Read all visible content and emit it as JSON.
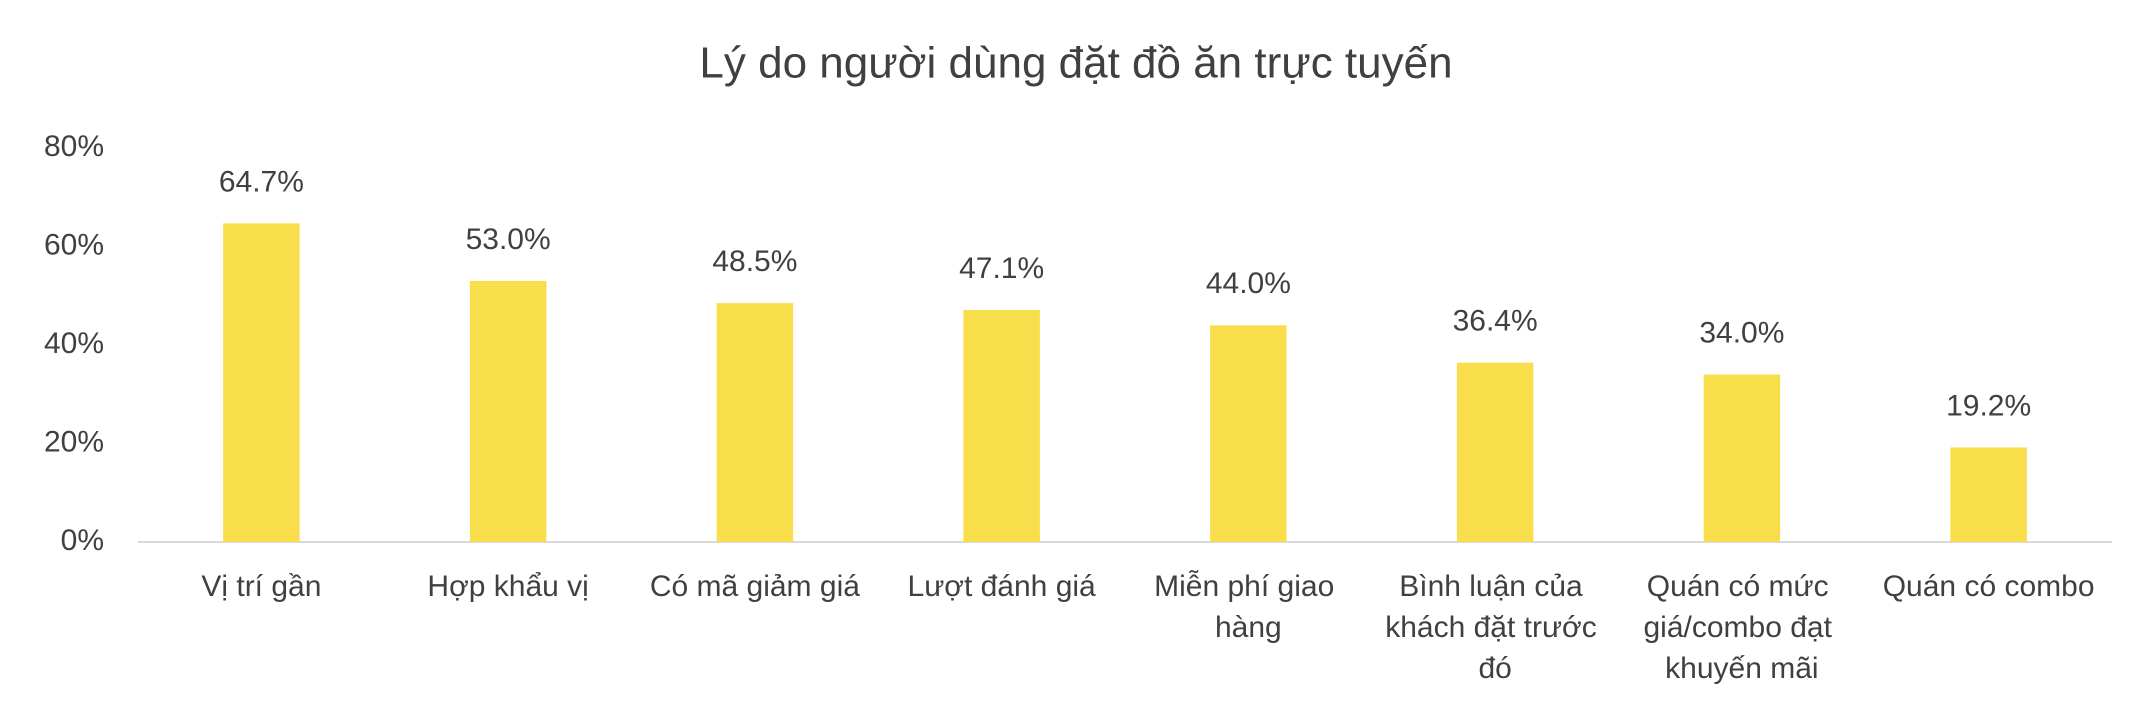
{
  "chart_data": {
    "type": "bar",
    "title": "Lý do người dùng đặt đồ ăn trực tuyến",
    "categories": [
      "Vị trí gần",
      "Hợp khẩu vị",
      "Có mã giảm giá",
      "Lượt đánh giá",
      "Miễn phí giao hàng",
      "Bình luận của khách đặt trước đó",
      "Quán có mức giá/combo đạt khuyến mãi",
      "Quán có combo"
    ],
    "values": [
      64.7,
      53.0,
      48.5,
      47.1,
      44.0,
      36.4,
      34.0,
      19.2
    ],
    "value_labels": [
      "64.7%",
      "53.0%",
      "48.5%",
      "47.1%",
      "44.0%",
      "36.4%",
      "34.0%",
      "19.2%"
    ],
    "color": "#f8de4b",
    "ylim": [
      0,
      80
    ],
    "yticks": [
      {
        "value": 0,
        "label": "0%"
      },
      {
        "value": 20,
        "label": "20%"
      },
      {
        "value": 40,
        "label": "40%"
      },
      {
        "value": 60,
        "label": "60%"
      },
      {
        "value": 80,
        "label": "80%"
      }
    ],
    "grid": false
  }
}
